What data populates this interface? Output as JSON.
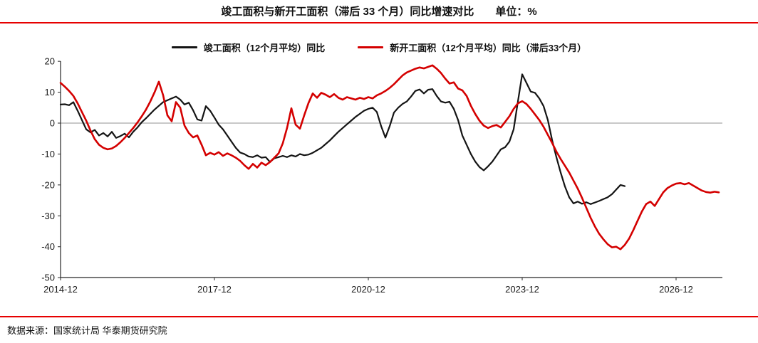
{
  "page": {
    "title": "竣工面积与新开工面积（滞后 33 个月）同比增速对比",
    "unit_label": "单位：%",
    "source": "数据来源：国家统计局  华泰期货研究院"
  },
  "colors": {
    "accent_red": "#e60000",
    "series_black": "#141414",
    "series_red": "#d40000",
    "zero_line": "#a6a6a6",
    "axis": "#262626",
    "tick_text": "#1a1a1a"
  },
  "chart_data": {
    "type": "line",
    "title": "竣工面积与新开工面积（滞后 33 个月）同比增速对比",
    "xlabel": "",
    "ylabel": "%",
    "ylim": [
      -50,
      20
    ],
    "yticks": [
      20,
      10,
      0,
      -10,
      -20,
      -30,
      -40,
      -50
    ],
    "grid": "zero-line-only",
    "legend_position": "top-center",
    "x_start": "2014-12",
    "x_interval": "monthly",
    "xticks": [
      {
        "label": "2014-12",
        "m": 0
      },
      {
        "label": "2017-12",
        "m": 36
      },
      {
        "label": "2020-12",
        "m": 72
      },
      {
        "label": "2023-12",
        "m": 108
      },
      {
        "label": "2026-12",
        "m": 144
      }
    ],
    "series": [
      {
        "name": "竣工面积（12个月平均）同比",
        "color": "#141414",
        "start": "2014-12",
        "end": "2025-12",
        "values": [
          6.0,
          6.1,
          5.8,
          6.8,
          4.0,
          1.0,
          -2.0,
          -3.0,
          -2.2,
          -4.0,
          -3.2,
          -4.3,
          -2.8,
          -4.8,
          -4.2,
          -3.4,
          -4.6,
          -2.8,
          -1.4,
          0.3,
          1.6,
          3.0,
          4.4,
          5.6,
          6.8,
          7.4,
          8.0,
          8.6,
          7.6,
          6.0,
          6.6,
          4.2,
          1.2,
          0.8,
          5.5,
          4.0,
          1.8,
          -0.5,
          -2.0,
          -4.0,
          -6.0,
          -8.0,
          -9.5,
          -10.0,
          -10.8,
          -11.0,
          -10.4,
          -11.2,
          -11.0,
          -12.6,
          -11.4,
          -11.0,
          -10.6,
          -11.0,
          -10.4,
          -10.8,
          -10.0,
          -10.4,
          -10.2,
          -9.6,
          -8.8,
          -8.0,
          -6.8,
          -5.6,
          -4.2,
          -2.8,
          -1.6,
          -0.4,
          0.8,
          2.0,
          3.0,
          4.0,
          4.6,
          5.0,
          3.6,
          -1.0,
          -4.7,
          -1.0,
          3.4,
          5.0,
          6.2,
          7.0,
          8.6,
          10.4,
          10.9,
          9.6,
          10.8,
          11.0,
          8.8,
          7.0,
          6.6,
          6.9,
          4.6,
          1.0,
          -4.0,
          -7.0,
          -10.0,
          -12.4,
          -14.2,
          -15.3,
          -14.0,
          -12.5,
          -10.5,
          -8.5,
          -7.8,
          -6.0,
          -2.0,
          7.0,
          15.8,
          13.0,
          10.2,
          9.8,
          8.0,
          5.5,
          1.0,
          -5.5,
          -11.0,
          -16.0,
          -20.5,
          -24.0,
          -26.0,
          -25.4,
          -26.1,
          -25.6,
          -26.2,
          -25.7,
          -25.2,
          -24.6,
          -24.0,
          -23.0,
          -21.5,
          -20.0,
          -20.4
        ]
      },
      {
        "name": "新开工面积（12个月平均）同比（滞后33个月）",
        "color": "#d40000",
        "start": "2014-12",
        "end": "2027-10",
        "values": [
          13.0,
          11.8,
          10.4,
          8.8,
          6.4,
          3.6,
          0.8,
          -2.4,
          -5.2,
          -7.0,
          -8.0,
          -8.5,
          -8.2,
          -7.4,
          -6.2,
          -4.8,
          -3.2,
          -1.6,
          0.2,
          2.2,
          4.4,
          7.0,
          10.0,
          13.4,
          9.0,
          2.5,
          0.6,
          6.8,
          5.0,
          -0.8,
          -3.2,
          -4.6,
          -4.0,
          -7.0,
          -10.4,
          -9.6,
          -10.2,
          -9.4,
          -10.6,
          -9.8,
          -10.4,
          -11.2,
          -12.2,
          -13.6,
          -14.8,
          -13.2,
          -14.4,
          -12.8,
          -13.6,
          -12.6,
          -11.2,
          -9.8,
          -6.5,
          -1.5,
          4.8,
          -0.5,
          -1.8,
          2.5,
          6.5,
          9.6,
          8.2,
          9.8,
          9.2,
          8.4,
          9.4,
          8.2,
          7.6,
          8.4,
          8.0,
          7.6,
          8.2,
          7.8,
          8.4,
          8.0,
          9.0,
          9.6,
          10.4,
          11.4,
          12.6,
          14.0,
          15.4,
          16.4,
          17.0,
          17.6,
          18.0,
          17.7,
          18.2,
          18.7,
          17.6,
          16.2,
          14.4,
          12.8,
          13.2,
          11.2,
          10.6,
          8.8,
          5.6,
          3.0,
          0.8,
          -0.8,
          -1.6,
          -1.0,
          -0.6,
          -1.4,
          0.4,
          2.2,
          4.6,
          6.4,
          7.1,
          6.2,
          4.6,
          2.8,
          1.0,
          -1.2,
          -3.8,
          -6.4,
          -9.2,
          -11.6,
          -13.8,
          -16.0,
          -18.6,
          -21.2,
          -24.2,
          -27.4,
          -30.6,
          -33.4,
          -35.8,
          -37.6,
          -39.2,
          -40.2,
          -40.0,
          -40.8,
          -39.4,
          -37.4,
          -34.6,
          -31.6,
          -28.6,
          -26.2,
          -25.4,
          -26.8,
          -24.6,
          -22.4,
          -21.0,
          -20.2,
          -19.6,
          -19.4,
          -19.8,
          -19.4,
          -20.2,
          -21.0,
          -21.8,
          -22.3,
          -22.5,
          -22.2,
          -22.4
        ]
      }
    ]
  }
}
